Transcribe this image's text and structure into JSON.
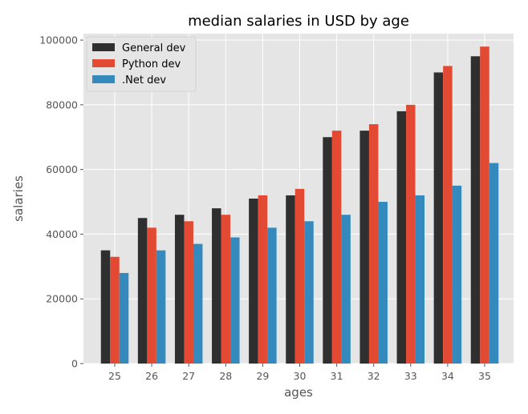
{
  "chart_data": {
    "type": "bar",
    "title": "median salaries in USD by age",
    "xlabel": "ages",
    "ylabel": "salaries",
    "categories": [
      "25",
      "26",
      "27",
      "28",
      "29",
      "30",
      "31",
      "32",
      "33",
      "34",
      "35"
    ],
    "series": [
      {
        "name": "General dev",
        "color": "#2f2f2f",
        "values": [
          35000,
          45000,
          46000,
          48000,
          51000,
          52000,
          70000,
          72000,
          78000,
          90000,
          95000
        ]
      },
      {
        "name": "Python dev",
        "color": "#e24a33",
        "values": [
          33000,
          42000,
          44000,
          46000,
          52000,
          54000,
          72000,
          74000,
          80000,
          92000,
          98000
        ]
      },
      {
        "name": ".Net dev",
        "color": "#348abd",
        "values": [
          28000,
          35000,
          37000,
          39000,
          42000,
          44000,
          46000,
          50000,
          52000,
          55000,
          62000
        ]
      }
    ],
    "ylim": [
      0,
      102000
    ],
    "yticks": [
      0,
      20000,
      40000,
      60000,
      80000,
      100000
    ],
    "grid": true,
    "legend_position": "top-left",
    "background": "#e5e5e5"
  }
}
